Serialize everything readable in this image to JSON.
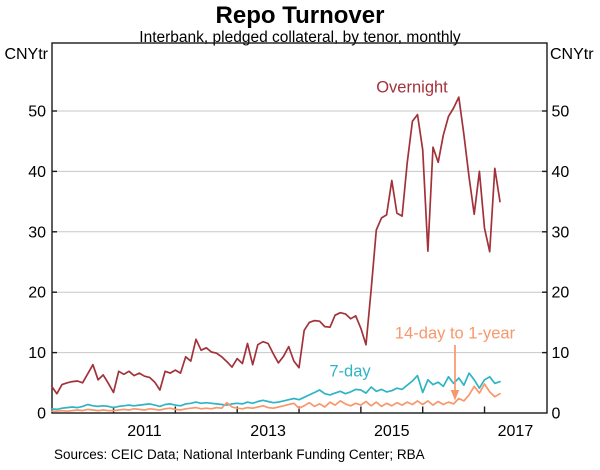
{
  "chart_data": {
    "type": "line",
    "title": "Repo Turnover",
    "subtitle": "Interbank, pledged collateral, by tenor, monthly",
    "unit": "CNYtr",
    "frequency": "monthly",
    "x_start": "2010-01",
    "x_end": "2017-04",
    "x_tick_years": [
      2011,
      2012,
      2013,
      2014,
      2015,
      2016,
      2017
    ],
    "x_axis_labels": [
      "2011",
      "2013",
      "2015",
      "2017"
    ],
    "y_ticks": [
      0,
      10,
      20,
      30,
      40,
      50
    ],
    "ylim": [
      0,
      61.3
    ],
    "grid": "horizontal",
    "legend_position": "inline-annotations",
    "series": [
      {
        "name": "Overnight",
        "color": "#a2323a",
        "values": [
          4.4,
          3.2,
          4.7,
          5.0,
          5.2,
          5.3,
          5.0,
          6.5,
          8.0,
          5.5,
          6.3,
          4.9,
          3.4,
          6.9,
          6.4,
          6.9,
          6.2,
          6.6,
          6.1,
          5.9,
          5.1,
          3.8,
          6.9,
          6.6,
          7.1,
          6.6,
          9.3,
          8.6,
          12.2,
          10.4,
          10.8,
          10.1,
          9.9,
          9.3,
          8.5,
          7.6,
          9.0,
          8.2,
          11.5,
          8.0,
          11.3,
          11.8,
          11.5,
          9.8,
          8.3,
          9.4,
          11.0,
          8.6,
          7.5,
          13.7,
          15.0,
          15.3,
          15.2,
          14.3,
          14.2,
          16.2,
          16.6,
          16.4,
          15.6,
          16.1,
          14.0,
          11.3,
          20.5,
          30.3,
          32.3,
          32.8,
          38.5,
          33.1,
          32.6,
          41.4,
          48.3,
          49.4,
          43.6,
          26.8,
          44.0,
          41.5,
          46.0,
          49.1,
          50.5,
          52.3,
          46.1,
          39.0,
          32.9,
          40.0,
          30.6,
          26.7,
          40.5,
          35.0
        ]
      },
      {
        "name": "7-day",
        "color": "#2fb4c6",
        "values": [
          0.7,
          0.6,
          0.8,
          0.9,
          1.0,
          0.9,
          1.1,
          1.4,
          1.2,
          1.1,
          1.2,
          1.1,
          0.9,
          1.1,
          1.2,
          1.3,
          1.2,
          1.3,
          1.4,
          1.5,
          1.3,
          1.1,
          1.4,
          1.5,
          1.3,
          1.2,
          1.5,
          1.6,
          1.8,
          1.6,
          1.7,
          1.6,
          1.5,
          1.4,
          1.3,
          1.5,
          1.6,
          1.5,
          1.8,
          1.6,
          1.9,
          2.1,
          1.9,
          1.7,
          1.8,
          2.0,
          2.2,
          2.4,
          2.2,
          2.6,
          3.0,
          3.4,
          3.8,
          3.2,
          3.0,
          3.3,
          3.6,
          3.2,
          3.5,
          3.9,
          3.8,
          3.3,
          4.3,
          3.6,
          3.9,
          3.5,
          3.7,
          4.1,
          3.9,
          4.6,
          5.3,
          6.2,
          3.4,
          5.5,
          4.7,
          5.1,
          4.4,
          6.0,
          4.9,
          5.8,
          4.6,
          6.6,
          5.5,
          4.1,
          5.5,
          6.0,
          4.9,
          5.2
        ]
      },
      {
        "name": "14-day to 1-year",
        "color": "#f8976b",
        "values": [
          0.3,
          0.3,
          0.4,
          0.3,
          0.4,
          0.5,
          0.4,
          0.6,
          0.5,
          0.4,
          0.5,
          0.4,
          0.4,
          0.5,
          0.6,
          0.5,
          0.7,
          0.6,
          0.5,
          0.7,
          0.6,
          0.5,
          0.7,
          0.8,
          0.6,
          0.5,
          0.7,
          0.8,
          0.9,
          0.7,
          0.8,
          0.7,
          0.9,
          0.8,
          1.7,
          1.0,
          0.8,
          0.7,
          0.9,
          0.8,
          1.0,
          1.2,
          0.9,
          0.8,
          1.0,
          1.2,
          1.4,
          1.6,
          0.8,
          1.2,
          1.7,
          1.1,
          1.5,
          1.0,
          1.8,
          1.3,
          2.0,
          1.5,
          1.2,
          1.6,
          1.3,
          1.9,
          1.2,
          1.8,
          1.1,
          1.6,
          1.2,
          1.7,
          1.3,
          1.8,
          1.4,
          2.0,
          1.4,
          2.0,
          1.3,
          1.9,
          1.4,
          1.8,
          1.5,
          2.4,
          2.0,
          3.0,
          4.4,
          3.3,
          4.8,
          3.5,
          2.7,
          3.2
        ]
      }
    ],
    "source": "Sources: CEIC Data; National Interbank Funding Center; RBA",
    "colors": {
      "grid": "#c7c7c7",
      "axis": "#1a1a1a",
      "text": "#000000"
    }
  }
}
